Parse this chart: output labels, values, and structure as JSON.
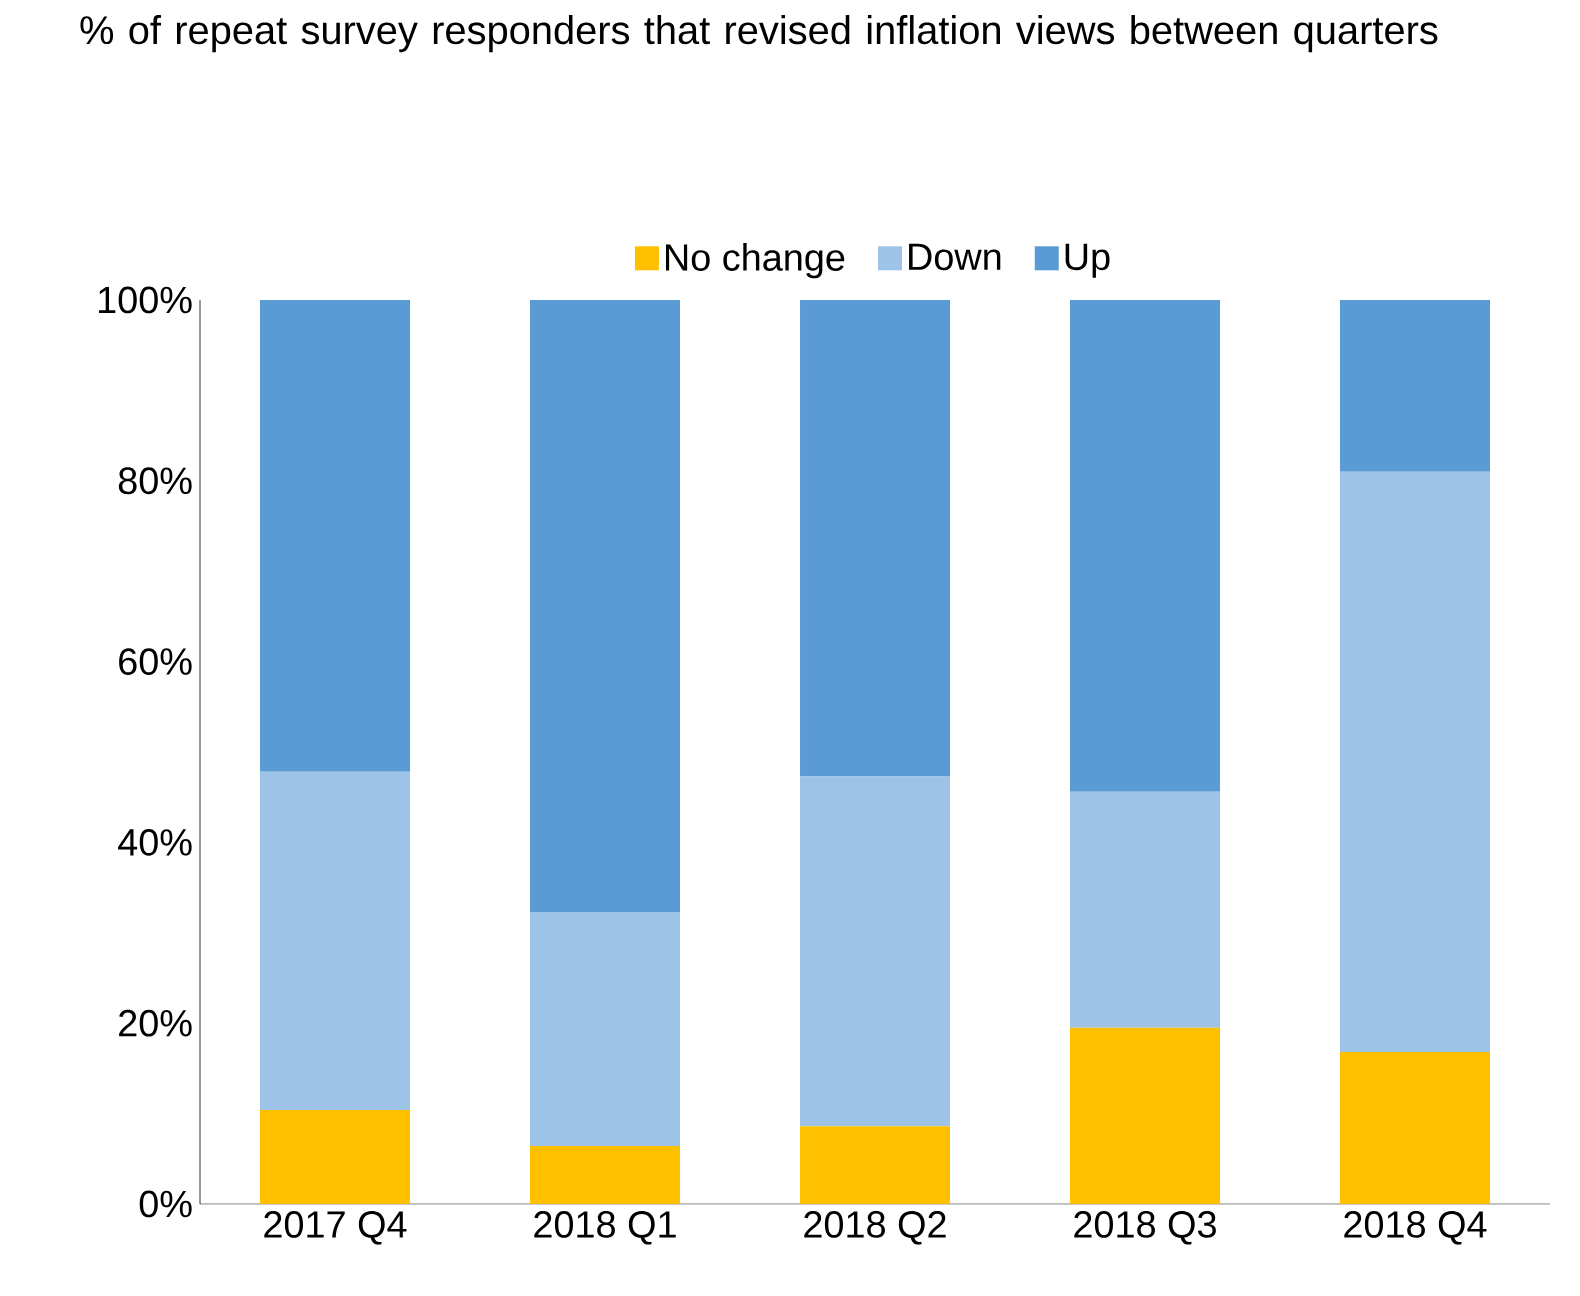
{
  "chart_data": {
    "type": "bar",
    "stacked": true,
    "title": "% of repeat survey responders that revised inflation views between quarters",
    "categories": [
      "2017 Q4",
      "2018 Q1",
      "2018 Q2",
      "2018 Q3",
      "2018 Q4"
    ],
    "series": [
      {
        "name": "No change",
        "color": "#ffc000",
        "values": [
          10.4,
          6.4,
          8.6,
          19.5,
          16.8
        ]
      },
      {
        "name": "Down",
        "color": "#9dc3e6",
        "values": [
          37.4,
          25.9,
          38.7,
          26.1,
          64.2
        ]
      },
      {
        "name": "Up",
        "color": "#5b9bd5",
        "values": [
          52.2,
          67.7,
          52.7,
          54.4,
          19.0
        ]
      }
    ],
    "ylim": [
      0,
      100
    ],
    "yticks": [
      {
        "value": 0,
        "label": "0%"
      },
      {
        "value": 20,
        "label": "20%"
      },
      {
        "value": 40,
        "label": "40%"
      },
      {
        "value": 60,
        "label": "60%"
      },
      {
        "value": 80,
        "label": "80%"
      },
      {
        "value": 100,
        "label": "100%"
      }
    ],
    "legend": "top"
  }
}
